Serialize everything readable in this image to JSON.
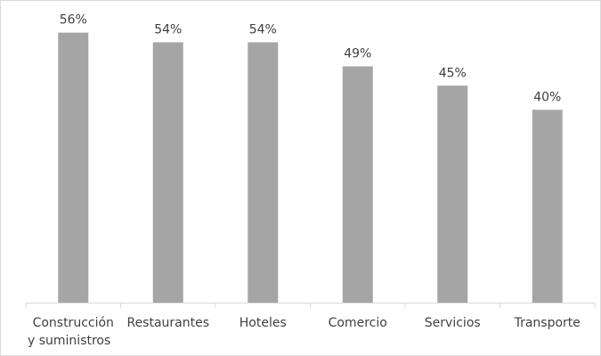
{
  "chart_data": {
    "type": "bar",
    "categories": [
      [
        "Construcción",
        "y suministros"
      ],
      [
        "Restaurantes"
      ],
      [
        "Hoteles"
      ],
      [
        "Comercio"
      ],
      [
        "Servicios"
      ],
      [
        "Transporte"
      ]
    ],
    "values": [
      56,
      54,
      54,
      49,
      45,
      40
    ],
    "value_labels": [
      "56%",
      "54%",
      "54%",
      "49%",
      "45%",
      "40%"
    ],
    "ylim": [
      0,
      60
    ],
    "title": "",
    "xlabel": "",
    "ylabel": "",
    "grid": false,
    "legend": "none",
    "bar_color": "#a5a5a5",
    "axis_color": "#d9d9d9",
    "text_color": "#404040"
  }
}
